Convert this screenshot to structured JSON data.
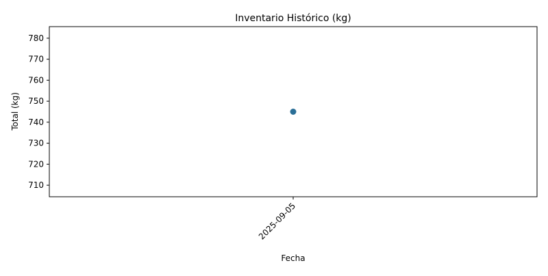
{
  "chart_data": {
    "type": "scatter",
    "title": "Inventario Histórico (kg)",
    "xlabel": "Fecha",
    "ylabel": "Total (kg)",
    "x": [
      "2025-09-05"
    ],
    "series": [
      {
        "values": [
          745
        ],
        "color": "#2a6f97"
      }
    ],
    "ylim": [
      704.5,
      785.5
    ],
    "yticks": [
      710,
      720,
      730,
      740,
      750,
      760,
      770,
      780
    ],
    "xticks": [
      "2025-09-05"
    ],
    "grid": false,
    "legend": "none"
  }
}
